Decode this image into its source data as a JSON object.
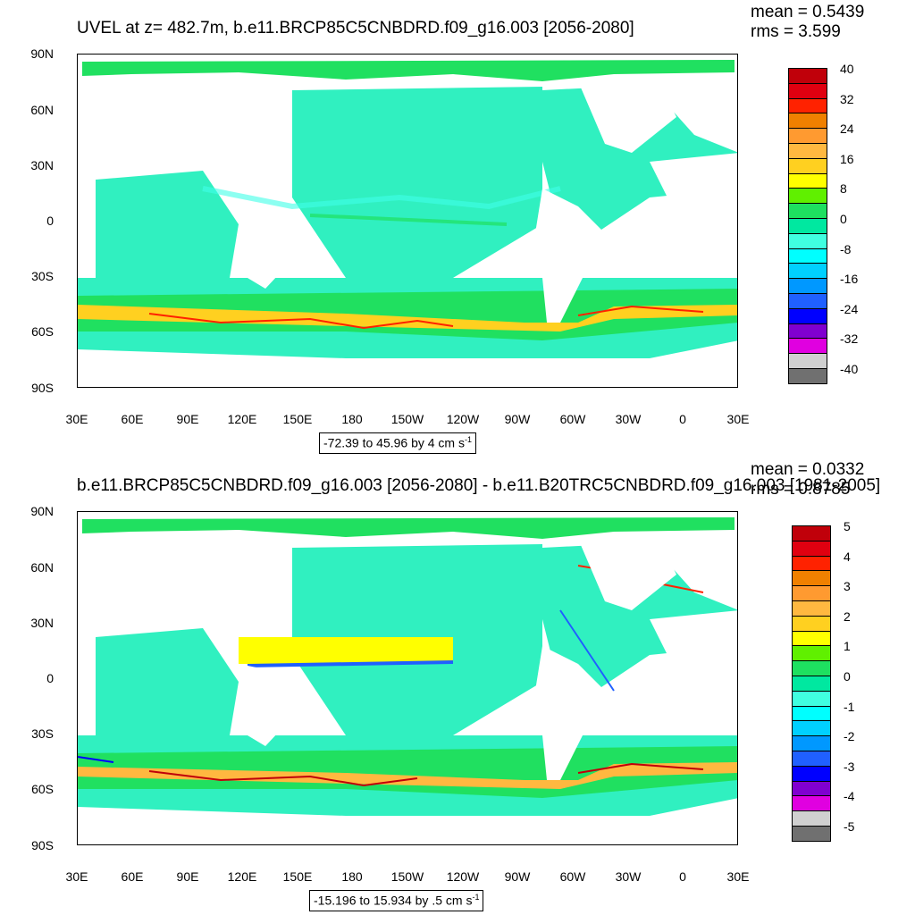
{
  "top": {
    "title": "UVEL at z= 482.7m, b.e11.BRCP85C5CNBDRD.f09_g16.003 [2056-2080]",
    "mean": "mean = 0.5439",
    "rms": "rms = 3.599",
    "range_text": "-72.39 to 45.96 by 4 cm s",
    "range_unit_exp": "-1",
    "colorbar_labels": [
      "40",
      "32",
      "24",
      "16",
      "8",
      "0",
      "-8",
      "-16",
      "-24",
      "-32",
      "-40"
    ],
    "colorbar_colors": [
      "#c0000a",
      "#e00010",
      "#ff2200",
      "#f08000",
      "#ff9a30",
      "#ffb840",
      "#ffd020",
      "#ffff00",
      "#60f000",
      "#1ee060",
      "#00e8a0",
      "#40ffe0",
      "#00ffff",
      "#00d0ff",
      "#0098ff",
      "#2060ff",
      "#0000ff",
      "#8000d0",
      "#e000e0",
      "#d0d0d0",
      "#707070"
    ]
  },
  "bottom": {
    "title": "b.e11.BRCP85C5CNBDRD.f09_g16.003 [2056-2080] - b.e11.B20TRC5CNBDRD.f09_g16.003 [1981-2005]",
    "mean": "mean = 0.0332",
    "rms": "rms = 0.8785",
    "range_text": "-15.196 to 15.934 by .5 cm s",
    "range_unit_exp": "-1",
    "colorbar_labels": [
      "5",
      "4",
      "3",
      "2",
      "1",
      "0",
      "-1",
      "-2",
      "-3",
      "-4",
      "-5"
    ],
    "colorbar_colors": [
      "#c0000a",
      "#e00010",
      "#ff2200",
      "#f08000",
      "#ff9a30",
      "#ffb840",
      "#ffd020",
      "#ffff00",
      "#60f000",
      "#1ee060",
      "#00e8a0",
      "#40ffe0",
      "#00ffff",
      "#00d0ff",
      "#0098ff",
      "#2060ff",
      "#0000ff",
      "#8000d0",
      "#e000e0",
      "#d0d0d0",
      "#707070"
    ]
  },
  "axes": {
    "lat_labels": [
      "90N",
      "60N",
      "30N",
      "0",
      "30S",
      "60S",
      "90S"
    ],
    "lon_labels": [
      "30E",
      "60E",
      "90E",
      "120E",
      "150E",
      "180",
      "150W",
      "120W",
      "90W",
      "60W",
      "30W",
      "0",
      "30E"
    ]
  },
  "colors": {
    "ocean_base": "#30f0c0",
    "ocean_green": "#20e060",
    "ocean_cyan": "#40ffe8",
    "land": "#ffffff"
  }
}
